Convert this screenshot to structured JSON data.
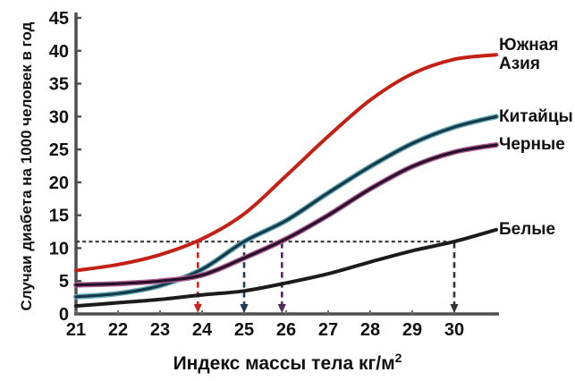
{
  "chart_data": {
    "type": "line",
    "title": "",
    "xlabel": "Индекс массы тела кг/м²",
    "xlabel_main": "Индекс массы тела кг/м",
    "xlabel_sup": "2",
    "ylabel": "Случаи диабета на 1000 человек в год",
    "xlim": [
      21,
      31
    ],
    "ylim": [
      0,
      45
    ],
    "x_ticks": [
      21,
      22,
      23,
      24,
      25,
      26,
      27,
      28,
      29,
      30
    ],
    "y_ticks": [
      0,
      5,
      10,
      15,
      20,
      25,
      30,
      35,
      40,
      45
    ],
    "grid": false,
    "legend_position": "right-of-curve-ends",
    "x": [
      21,
      22,
      23,
      24,
      25,
      26,
      27,
      28,
      29,
      30,
      31
    ],
    "series": [
      {
        "name": "Южная Азия",
        "label_lines": "Южная\nАзия",
        "color": "#c42116",
        "halo": null,
        "values": [
          6.6,
          7.5,
          9.0,
          11.4,
          15.2,
          21.0,
          27.0,
          32.5,
          36.5,
          38.7,
          39.4
        ]
      },
      {
        "name": "Китайцы",
        "label_lines": "Китайцы",
        "color": "#14394a",
        "halo": "#6aacb6",
        "values": [
          2.6,
          3.1,
          4.3,
          6.8,
          11.0,
          14.2,
          18.4,
          22.4,
          25.9,
          28.4,
          30.0
        ]
      },
      {
        "name": "Черные",
        "label_lines": "Черные",
        "color": "#26102c",
        "halo": "#b06090",
        "values": [
          4.4,
          4.6,
          5.0,
          5.9,
          8.5,
          11.4,
          15.0,
          19.0,
          22.4,
          24.6,
          25.7
        ]
      },
      {
        "name": "Белые",
        "label_lines": "Белые",
        "color": "#1c1c1c",
        "halo": null,
        "values": [
          1.2,
          1.7,
          2.2,
          2.9,
          3.5,
          4.7,
          6.1,
          7.9,
          9.6,
          11.0,
          12.8
        ]
      }
    ],
    "annotations": {
      "threshold_line": {
        "y": 11,
        "x_start": 21,
        "x_end": 30,
        "color": "#3f3f3f"
      },
      "drop_arrows": [
        {
          "x": 23.9,
          "color": "#c8281c",
          "series": "Южная Азия"
        },
        {
          "x": 25.0,
          "color": "#1c3c55",
          "series": "Китайцы"
        },
        {
          "x": 25.9,
          "color": "#53285c",
          "series": "Черные"
        },
        {
          "x": 30.0,
          "color": "#333333",
          "series": "Белые"
        }
      ]
    },
    "axis_color": "#4f4f4f"
  }
}
